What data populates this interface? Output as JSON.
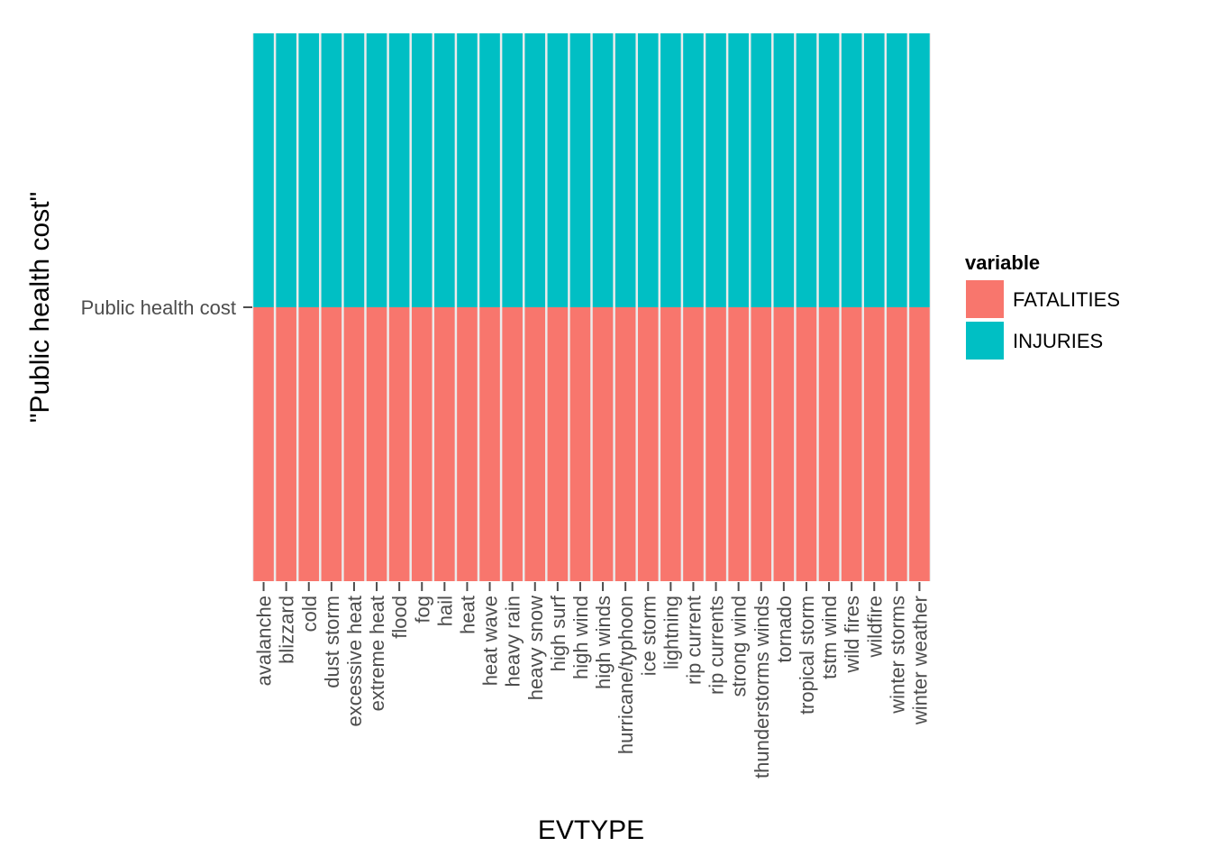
{
  "chart_data": {
    "type": "bar",
    "stacked": true,
    "position": "fill",
    "xlabel": "EVTYPE",
    "ylabel": "\"Public health cost\"",
    "y_categories": [
      "Public health cost"
    ],
    "categories": [
      "avalanche",
      "blizzard",
      "cold",
      "dust storm",
      "excessive heat",
      "extreme heat",
      "flood",
      "fog",
      "hail",
      "heat",
      "heat wave",
      "heavy rain",
      "heavy snow",
      "high surf",
      "high wind",
      "high winds",
      "hurricane/typhoon",
      "ice storm",
      "lightning",
      "rip current",
      "rip currents",
      "strong wind",
      "thunderstorms winds",
      "tornado",
      "tropical storm",
      "tstm wind",
      "wild fires",
      "wildfire",
      "winter storms",
      "winter weather"
    ],
    "series": [
      {
        "name": "FATALITIES",
        "color": "#F8766D",
        "values": [
          0.5,
          0.5,
          0.5,
          0.5,
          0.5,
          0.5,
          0.5,
          0.5,
          0.5,
          0.5,
          0.5,
          0.5,
          0.5,
          0.5,
          0.5,
          0.5,
          0.5,
          0.5,
          0.5,
          0.5,
          0.5,
          0.5,
          0.5,
          0.5,
          0.5,
          0.5,
          0.5,
          0.5,
          0.5,
          0.5
        ]
      },
      {
        "name": "INJURIES",
        "color": "#00BFC4",
        "values": [
          0.5,
          0.5,
          0.5,
          0.5,
          0.5,
          0.5,
          0.5,
          0.5,
          0.5,
          0.5,
          0.5,
          0.5,
          0.5,
          0.5,
          0.5,
          0.5,
          0.5,
          0.5,
          0.5,
          0.5,
          0.5,
          0.5,
          0.5,
          0.5,
          0.5,
          0.5,
          0.5,
          0.5,
          0.5,
          0.5
        ]
      }
    ],
    "legend": {
      "title": "variable",
      "position": "right"
    },
    "grid": false,
    "panel_background": "#ebebeb"
  }
}
